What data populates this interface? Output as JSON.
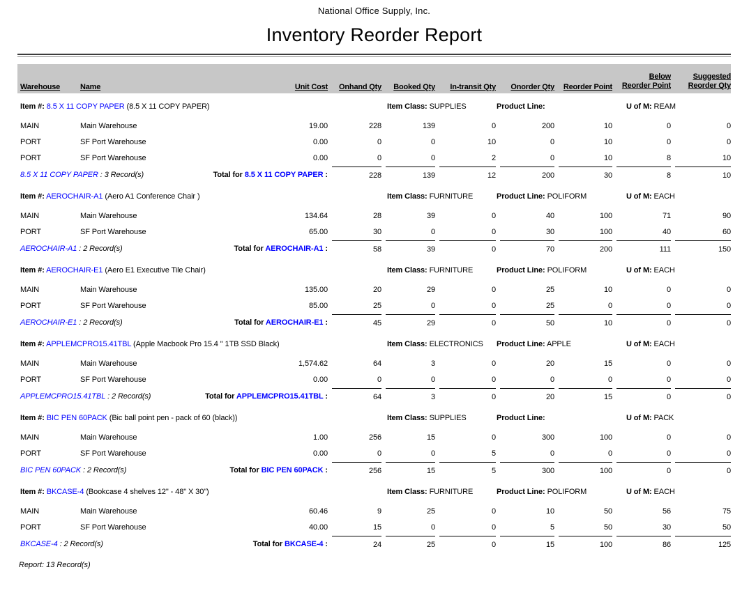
{
  "report": {
    "company": "National Office Supply, Inc.",
    "title": "Inventory Reorder Report",
    "footer": "Report: 13 Record(s)"
  },
  "columns": {
    "warehouse": "Warehouse",
    "name": "Name",
    "unit_cost": "Unit Cost",
    "onhand": "Onhand Qty",
    "booked": "Booked Qty",
    "in_transit": "In-transit Qty",
    "onorder": "Onorder Qty",
    "reorder_point": "Reorder Point",
    "below_line1": "Below",
    "below_line2": "Reorder Point",
    "suggested_line1": "Suggested",
    "suggested_line2": "Reorder Qty"
  },
  "labels": {
    "item_num": "Item #:",
    "item_class": "Item Class:",
    "product_line": "Product Line:",
    "uofm": "U of M:",
    "total_for": "Total for",
    "total_colon": ":"
  },
  "accent_colors": {
    "link_blue": "#0000ff",
    "header_band_gray": "#c7c7c7"
  },
  "groups": [
    {
      "item_code": "8.5 X 11 COPY PAPER",
      "item_desc": "(8.5 X 11 COPY PAPER)",
      "item_class": "SUPPLIES",
      "product_line": "",
      "uofm": "REAM",
      "records_suffix": " : 3 Record(s)",
      "rows": [
        {
          "warehouse": "MAIN",
          "name": "Main Warehouse",
          "unit_cost": "19.00",
          "onhand": "228",
          "booked": "139",
          "in_transit": "0",
          "onorder": "200",
          "reorder_point": "10",
          "below": "0",
          "suggested": "0"
        },
        {
          "warehouse": "PORT",
          "name": "SF Port Warehouse",
          "unit_cost": "0.00",
          "onhand": "0",
          "booked": "0",
          "in_transit": "10",
          "onorder": "0",
          "reorder_point": "10",
          "below": "0",
          "suggested": "0"
        },
        {
          "warehouse": "PORT",
          "name": "SF Port Warehouse",
          "unit_cost": "0.00",
          "onhand": "0",
          "booked": "0",
          "in_transit": "2",
          "onorder": "0",
          "reorder_point": "10",
          "below": "8",
          "suggested": "10"
        }
      ],
      "total": {
        "onhand": "228",
        "booked": "139",
        "in_transit": "12",
        "onorder": "200",
        "reorder_point": "30",
        "below": "8",
        "suggested": "10"
      }
    },
    {
      "item_code": "AEROCHAIR-A1",
      "item_desc": "(Aero A1 Conference Chair )",
      "item_class": "FURNITURE",
      "product_line": "POLIFORM",
      "uofm": "EACH",
      "records_suffix": " : 2 Record(s)",
      "rows": [
        {
          "warehouse": "MAIN",
          "name": "Main Warehouse",
          "unit_cost": "134.64",
          "onhand": "28",
          "booked": "39",
          "in_transit": "0",
          "onorder": "40",
          "reorder_point": "100",
          "below": "71",
          "suggested": "90"
        },
        {
          "warehouse": "PORT",
          "name": "SF Port Warehouse",
          "unit_cost": "65.00",
          "onhand": "30",
          "booked": "0",
          "in_transit": "0",
          "onorder": "30",
          "reorder_point": "100",
          "below": "40",
          "suggested": "60"
        }
      ],
      "total": {
        "onhand": "58",
        "booked": "39",
        "in_transit": "0",
        "onorder": "70",
        "reorder_point": "200",
        "below": "111",
        "suggested": "150"
      }
    },
    {
      "item_code": "AEROCHAIR-E1",
      "item_desc": "(Aero E1 Executive Tile Chair)",
      "item_class": "FURNITURE",
      "product_line": "POLIFORM",
      "uofm": "EACH",
      "records_suffix": " : 2 Record(s)",
      "rows": [
        {
          "warehouse": "MAIN",
          "name": "Main Warehouse",
          "unit_cost": "135.00",
          "onhand": "20",
          "booked": "29",
          "in_transit": "0",
          "onorder": "25",
          "reorder_point": "10",
          "below": "0",
          "suggested": "0"
        },
        {
          "warehouse": "PORT",
          "name": "SF Port Warehouse",
          "unit_cost": "85.00",
          "onhand": "25",
          "booked": "0",
          "in_transit": "0",
          "onorder": "25",
          "reorder_point": "0",
          "below": "0",
          "suggested": "0"
        }
      ],
      "total": {
        "onhand": "45",
        "booked": "29",
        "in_transit": "0",
        "onorder": "50",
        "reorder_point": "10",
        "below": "0",
        "suggested": "0"
      }
    },
    {
      "item_code": "APPLEMCPRO15.41TBL",
      "item_desc": "(Apple Macbook Pro 15.4 \" 1TB SSD Black)",
      "item_class": "ELECTRONICS",
      "product_line": "APPLE",
      "uofm": "EACH",
      "records_suffix": " : 2 Record(s)",
      "rows": [
        {
          "warehouse": "MAIN",
          "name": "Main Warehouse",
          "unit_cost": "1,574.62",
          "onhand": "64",
          "booked": "3",
          "in_transit": "0",
          "onorder": "20",
          "reorder_point": "15",
          "below": "0",
          "suggested": "0"
        },
        {
          "warehouse": "PORT",
          "name": "SF Port Warehouse",
          "unit_cost": "0.00",
          "onhand": "0",
          "booked": "0",
          "in_transit": "0",
          "onorder": "0",
          "reorder_point": "0",
          "below": "0",
          "suggested": "0"
        }
      ],
      "total": {
        "onhand": "64",
        "booked": "3",
        "in_transit": "0",
        "onorder": "20",
        "reorder_point": "15",
        "below": "0",
        "suggested": "0"
      }
    },
    {
      "item_code": "BIC PEN 60PACK",
      "item_desc": "(Bic ball point pen - pack of 60 (black))",
      "item_class": "SUPPLIES",
      "product_line": "",
      "uofm": "PACK",
      "records_suffix": " : 2 Record(s)",
      "rows": [
        {
          "warehouse": "MAIN",
          "name": "Main Warehouse",
          "unit_cost": "1.00",
          "onhand": "256",
          "booked": "15",
          "in_transit": "0",
          "onorder": "300",
          "reorder_point": "100",
          "below": "0",
          "suggested": "0"
        },
        {
          "warehouse": "PORT",
          "name": "SF Port Warehouse",
          "unit_cost": "0.00",
          "onhand": "0",
          "booked": "0",
          "in_transit": "5",
          "onorder": "0",
          "reorder_point": "0",
          "below": "0",
          "suggested": "0"
        }
      ],
      "total": {
        "onhand": "256",
        "booked": "15",
        "in_transit": "5",
        "onorder": "300",
        "reorder_point": "100",
        "below": "0",
        "suggested": "0"
      }
    },
    {
      "item_code": "BKCASE-4",
      "item_desc": "(Bookcase 4 shelves 12\" - 48\" X 30\")",
      "item_class": "FURNITURE",
      "product_line": "POLIFORM",
      "uofm": "EACH",
      "records_suffix": " : 2 Record(s)",
      "rows": [
        {
          "warehouse": "MAIN",
          "name": "Main Warehouse",
          "unit_cost": "60.46",
          "onhand": "9",
          "booked": "25",
          "in_transit": "0",
          "onorder": "10",
          "reorder_point": "50",
          "below": "56",
          "suggested": "75"
        },
        {
          "warehouse": "PORT",
          "name": "SF Port Warehouse",
          "unit_cost": "40.00",
          "onhand": "15",
          "booked": "0",
          "in_transit": "0",
          "onorder": "5",
          "reorder_point": "50",
          "below": "30",
          "suggested": "50"
        }
      ],
      "total": {
        "onhand": "24",
        "booked": "25",
        "in_transit": "0",
        "onorder": "15",
        "reorder_point": "100",
        "below": "86",
        "suggested": "125"
      }
    }
  ]
}
